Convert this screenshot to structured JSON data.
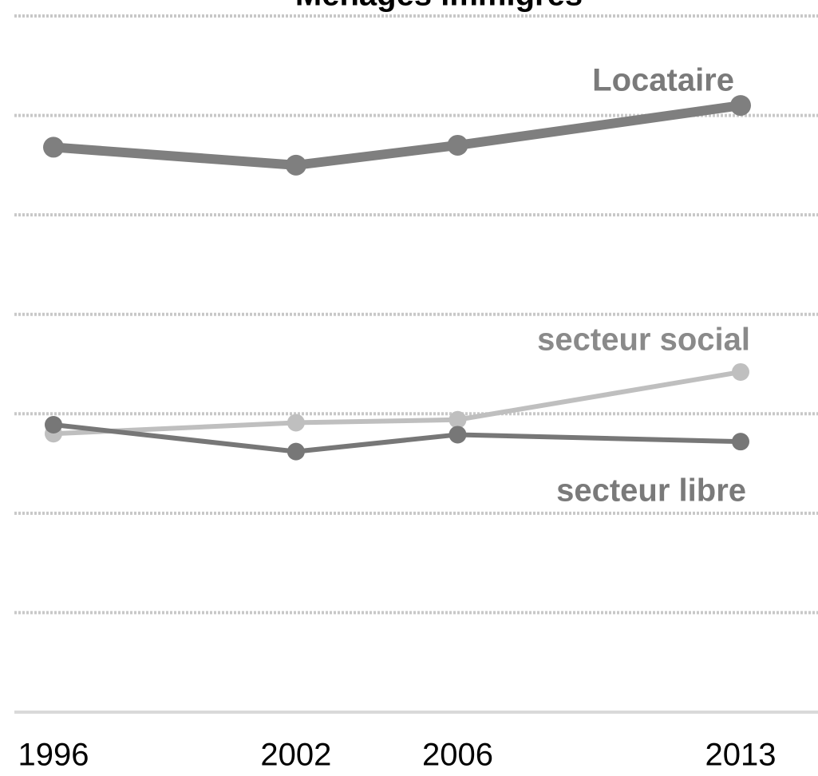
{
  "chart_data": {
    "type": "line",
    "title": "Ménages immigrés",
    "x": [
      1996,
      2002,
      2006,
      2013
    ],
    "xlim": [
      1996,
      2013
    ],
    "xticks": [
      1996,
      2002,
      2006,
      2013
    ],
    "ylim": [
      0,
      70
    ],
    "yticks": [
      0,
      10,
      20,
      30,
      40,
      50,
      60,
      70
    ],
    "grid": true,
    "series": [
      {
        "name": "Locataire",
        "color": "#7f7f7f",
        "values": [
          56.8,
          55.0,
          57.0,
          61.0
        ]
      },
      {
        "name": "secteur social",
        "color": "#bfbfbf",
        "values": [
          28.0,
          29.1,
          29.4,
          34.2
        ]
      },
      {
        "name": "secteur libre",
        "color": "#777777",
        "values": [
          28.9,
          26.2,
          27.9,
          27.2
        ]
      }
    ]
  }
}
